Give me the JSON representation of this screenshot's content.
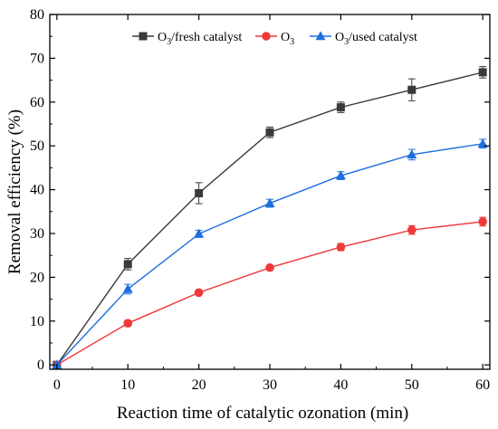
{
  "chart_data": {
    "type": "line",
    "title": "",
    "xlabel": "Reaction time of catalytic ozonation (min)",
    "ylabel": "Removal efficiency (%)",
    "xlim": [
      -1,
      61
    ],
    "ylim": [
      -1,
      80
    ],
    "xticks": [
      0,
      10,
      20,
      30,
      40,
      50,
      60
    ],
    "yticks": [
      0,
      10,
      20,
      30,
      40,
      50,
      60,
      70,
      80
    ],
    "legend_position": "top-right",
    "x": [
      0,
      10,
      20,
      30,
      40,
      50,
      60
    ],
    "series": [
      {
        "name_main": "O",
        "name_sub": "3",
        "name_rest": "/fresh catalyst",
        "color": "#3a3a3a",
        "marker": "square",
        "values": [
          0,
          23,
          39.2,
          53.1,
          58.8,
          62.8,
          66.8
        ],
        "errors": [
          0.5,
          1.3,
          2.4,
          1.2,
          1.2,
          2.5,
          1.3
        ]
      },
      {
        "name_main": "O",
        "name_sub": "3",
        "name_rest": "",
        "color": "#ee3a3a",
        "marker": "circle",
        "values": [
          0,
          9.5,
          16.5,
          22.2,
          26.9,
          30.8,
          32.7
        ],
        "errors": [
          0.3,
          0.6,
          0.5,
          0.5,
          0.8,
          1.0,
          1.0
        ]
      },
      {
        "name_main": "O",
        "name_sub": "3",
        "name_rest": "/used catalyst",
        "color": "#1f6fe0",
        "marker": "triangle",
        "values": [
          0,
          17.3,
          29.9,
          36.9,
          43.2,
          48.0,
          50.5
        ],
        "errors": [
          0.4,
          1.1,
          0.8,
          0.9,
          0.9,
          1.2,
          1.0
        ]
      }
    ]
  }
}
